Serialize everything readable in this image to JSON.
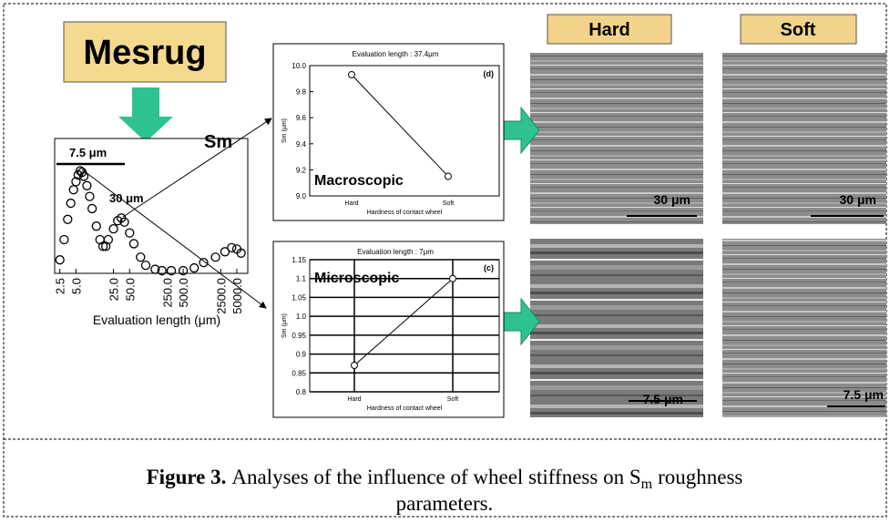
{
  "header": {
    "title": "Mesrug",
    "hard": "Hard",
    "soft": "Soft"
  },
  "scale_bars": {
    "macro_hard": "30 μm",
    "macro_soft": "30 μm",
    "micro_hard": "7.5 μm",
    "micro_soft": "7.5 μm"
  },
  "chart_data": [
    {
      "type": "scatter",
      "annotations": [
        "Sm",
        "7.5 μm",
        "30 μm"
      ],
      "xlabel": "Evaluation length (μm)",
      "log_x": true,
      "xlim": [
        2,
        8000
      ],
      "ylim": [
        0,
        1
      ],
      "xticks": [
        {
          "value": 2.5,
          "label": "2.5"
        },
        {
          "value": 5,
          "label": "5.0"
        },
        {
          "value": 25,
          "label": "25.0"
        },
        {
          "value": 50,
          "label": "50.0"
        },
        {
          "value": 250,
          "label": "250.0"
        },
        {
          "value": 500,
          "label": "500.0"
        },
        {
          "value": 2500,
          "label": "2500.0"
        },
        {
          "value": 5000,
          "label": "5000.0"
        }
      ],
      "x": [
        2.5,
        3,
        3.5,
        4,
        4.5,
        5,
        5.5,
        6,
        6.5,
        7,
        8,
        9,
        10,
        12,
        14,
        16,
        18,
        20,
        25,
        30,
        35,
        40,
        50,
        60,
        80,
        100,
        150,
        200,
        300,
        500,
        800,
        1200,
        2000,
        3000,
        4000,
        5000,
        6000
      ],
      "values": [
        0.1,
        0.25,
        0.4,
        0.52,
        0.62,
        0.68,
        0.73,
        0.76,
        0.75,
        0.72,
        0.65,
        0.57,
        0.48,
        0.35,
        0.25,
        0.2,
        0.2,
        0.25,
        0.33,
        0.39,
        0.41,
        0.38,
        0.3,
        0.22,
        0.12,
        0.06,
        0.03,
        0.02,
        0.02,
        0.02,
        0.04,
        0.08,
        0.12,
        0.16,
        0.19,
        0.18,
        0.15
      ]
    },
    {
      "type": "line",
      "title": "Evaluation length : 37.4μm",
      "panel_label": "(d)",
      "annotation": "Macroscopic",
      "xlabel": "Hardness of contact wheel",
      "ylabel": "Sm (μm)",
      "categories": [
        "Hard",
        "Soft"
      ],
      "values": [
        9.93,
        9.15
      ],
      "ylim": [
        9.0,
        10.0
      ],
      "yticks": [
        {
          "value": 9.0,
          "label": "9.0"
        },
        9.2,
        9.4,
        9.6,
        9.8,
        {
          "value": 10.0,
          "label": "10.0"
        }
      ],
      "grid": false
    },
    {
      "type": "line",
      "title": "Evaluation length : 7μm",
      "panel_label": "(c)",
      "annotation": "Microscopic",
      "xlabel": "Hardness of contact wheel",
      "ylabel": "Sm (μm)",
      "categories": [
        "Hard",
        "Soft"
      ],
      "values": [
        0.87,
        1.1
      ],
      "ylim": [
        0.8,
        1.15
      ],
      "yticks": [
        0.8,
        0.85,
        0.9,
        0.95,
        {
          "value": 1.0,
          "label": "1.0"
        },
        1.05,
        1.1,
        1.15
      ],
      "grid": true
    }
  ],
  "caption": {
    "label": "Figure 3.",
    "text": "Analyses of the influence of wheel stiffness on S",
    "subscript": "m",
    "text_end": "roughness",
    "line2": "parameters."
  }
}
